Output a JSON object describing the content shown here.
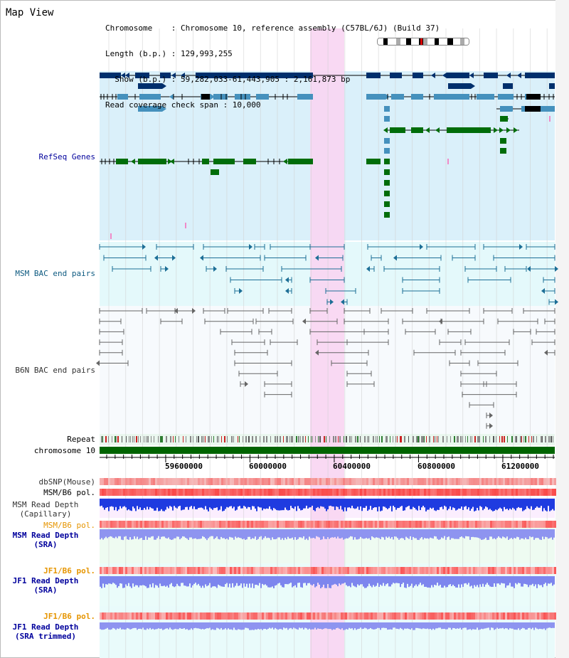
{
  "header": {
    "title": "Map View",
    "info_lines": [
      "Chromosome    : Chromosome 10, reference assembly (C57BL/6J) (Build 37)",
      "Length (b.p.) : 129,993,255",
      "  Show (b.p.) : 59,282,033-61,443,905 : 2,161,873 bp",
      "Read coverage check span : 10,000"
    ]
  },
  "tracks": {
    "refseq": {
      "label": "RefSeq Genes",
      "color": "#00009c"
    },
    "msm_bac": {
      "label": "MSM BAC end pairs",
      "color": "#0d5a80"
    },
    "b6n_bac": {
      "label": "B6N BAC end pairs",
      "color": "#333333"
    },
    "repeat": {
      "label": "Repeat",
      "color": "#000000"
    },
    "chromosome": {
      "label": "chromosome 10",
      "color": "#000000"
    },
    "dbsnp": {
      "label": "dbSNP(Mouse)",
      "color": "#333333"
    },
    "msm_b6_pol": {
      "label": "MSM/B6 pol.",
      "color": "#000000"
    },
    "msm_read_depth_cap": {
      "label_lines": [
        "MSM Read Depth",
        "(Capillary)"
      ],
      "color": "#333333"
    },
    "msm_b6_pol2": {
      "label": "MSM/B6 pol.",
      "color": "#e69500"
    },
    "msm_read_depth_sra": {
      "label_lines": [
        "MSM Read Depth",
        "(SRA)"
      ],
      "color": "#00009c"
    },
    "jf1_b6_pol": {
      "label": "JF1/B6 pol.",
      "color": "#e69500"
    },
    "jf1_read_depth_sra": {
      "label_lines": [
        "JF1 Read Depth",
        "(SRA)"
      ],
      "color": "#00009c"
    },
    "jf1_b6_pol2": {
      "label": "JF1/B6 pol.",
      "color": "#e69500"
    },
    "jf1_read_depth_trim": {
      "label_lines": [
        "JF1 Read Depth",
        "(SRA trimmed)"
      ],
      "color": "#00009c"
    }
  },
  "ruler": {
    "ticks": [
      "59600000",
      "60000000",
      "60400000",
      "60800000",
      "61200000"
    ]
  },
  "colors": {
    "highlight": "#f9d6f2",
    "refseq_bg": "#daf0fa",
    "msm_bac_bg": "#e4f9fb",
    "dark_gene": "#002f6c",
    "mid_gene": "#4591bd",
    "green_gene": "#006d0a",
    "chrom_bar": "#006400"
  }
}
